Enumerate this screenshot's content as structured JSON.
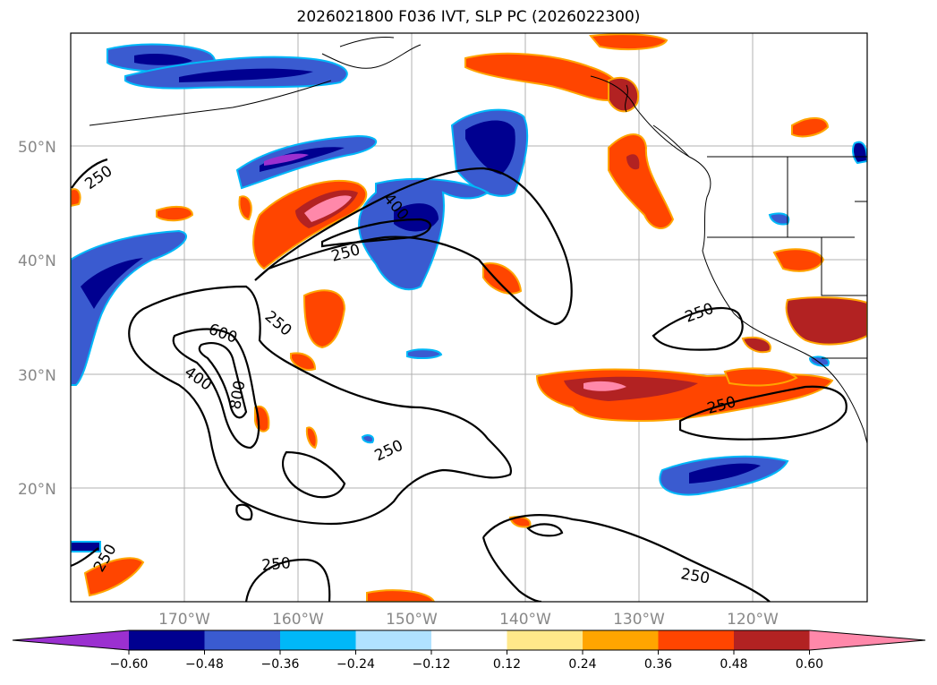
{
  "title": "2026021800 F036 IVT, SLP PC (2026022300)",
  "map": {
    "lat_labels": [
      "50°N",
      "40°N",
      "30°N",
      "20°N"
    ],
    "lon_labels": [
      "170°W",
      "160°W",
      "150°W",
      "140°W",
      "130°W",
      "120°W"
    ]
  },
  "contour_labels": [
    {
      "text": "250"
    },
    {
      "text": "400"
    },
    {
      "text": "250"
    },
    {
      "text": "600"
    },
    {
      "text": "400"
    },
    {
      "text": "800"
    },
    {
      "text": "250"
    },
    {
      "text": "250"
    },
    {
      "text": "250"
    },
    {
      "text": "250"
    },
    {
      "text": "250"
    },
    {
      "text": "250"
    },
    {
      "text": "250"
    }
  ],
  "colorbar": {
    "ticks": [
      "−0.60",
      "−0.48",
      "−0.36",
      "−0.24",
      "−0.12",
      "0.12",
      "0.24",
      "0.36",
      "0.48",
      "0.60"
    ],
    "colors": [
      "#9b30d0",
      "#000090",
      "#3a5bd0",
      "#00b8f8",
      "#b0e2ff",
      "#ffffff",
      "#ffe88a",
      "#ffa500",
      "#ff4500",
      "#b22222",
      "#ff88aa"
    ]
  }
}
